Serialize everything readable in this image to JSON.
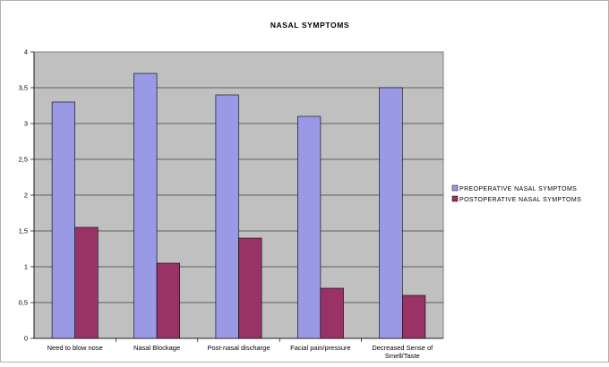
{
  "chart_data": {
    "type": "bar",
    "title": "NASAL SYMPTOMS",
    "xlabel": "",
    "ylabel": "",
    "ylim": [
      0,
      4
    ],
    "y_ticks": [
      "0",
      "0,5",
      "1",
      "1,5",
      "2",
      "2,5",
      "3",
      "3,5",
      "4"
    ],
    "grid": true,
    "legend_position": "right",
    "plot_background": "#c0c0c0",
    "categories": [
      "Need to blow nose",
      "Nasal Blockage",
      "Post-nasal discharge",
      "Facial pain/pressure",
      "Decreased Sense of Smell/Taste"
    ],
    "categories_lines": [
      [
        "Need to blow nose"
      ],
      [
        "Nasal Blockage"
      ],
      [
        "Post-nasal discharge"
      ],
      [
        "Facial pain/pressure"
      ],
      [
        "Decreased Sense of",
        "Smell/Taste"
      ]
    ],
    "series": [
      {
        "name": "PREOPERATIVE NASAL SYMPTOMS",
        "color": "#9999e6",
        "values": [
          3.3,
          3.7,
          3.4,
          3.1,
          3.5
        ]
      },
      {
        "name": "POSTOPERATIVE NASAL SYMPTOMS",
        "color": "#993366",
        "values": [
          1.55,
          1.05,
          1.4,
          0.7,
          0.6
        ]
      }
    ]
  }
}
